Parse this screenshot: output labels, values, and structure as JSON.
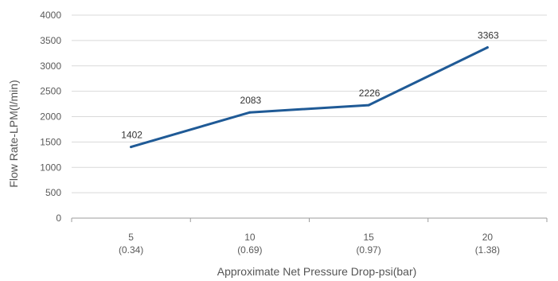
{
  "chart_data": {
    "type": "line",
    "categories": [
      "5\n(0.34)",
      "10\n(0.69)",
      "15\n(0.97)",
      "20\n(1.38)"
    ],
    "category_lines": [
      [
        "5",
        "(0.34)"
      ],
      [
        "10",
        "(0.69)"
      ],
      [
        "15",
        "(0.97)"
      ],
      [
        "20",
        "(1.38)"
      ]
    ],
    "series": [
      {
        "values": [
          1402,
          2083,
          2226,
          3363
        ]
      }
    ],
    "data_labels": [
      "1402",
      "2083",
      "2226",
      "3363"
    ],
    "ylim": [
      0,
      4000
    ],
    "yticks": [
      0,
      500,
      1000,
      1500,
      2000,
      2500,
      3000,
      3500,
      4000
    ],
    "ylabel": "Flow Rate-LPM(l/min)",
    "xlabel": "Approximate Net Pressure Drop-psi(bar)",
    "grid": true,
    "legend": "none",
    "colors": {
      "line": "#1f5a96",
      "grid": "#d9d9d9",
      "axis": "#9c9c9c",
      "text": "#5a5a5a"
    }
  }
}
